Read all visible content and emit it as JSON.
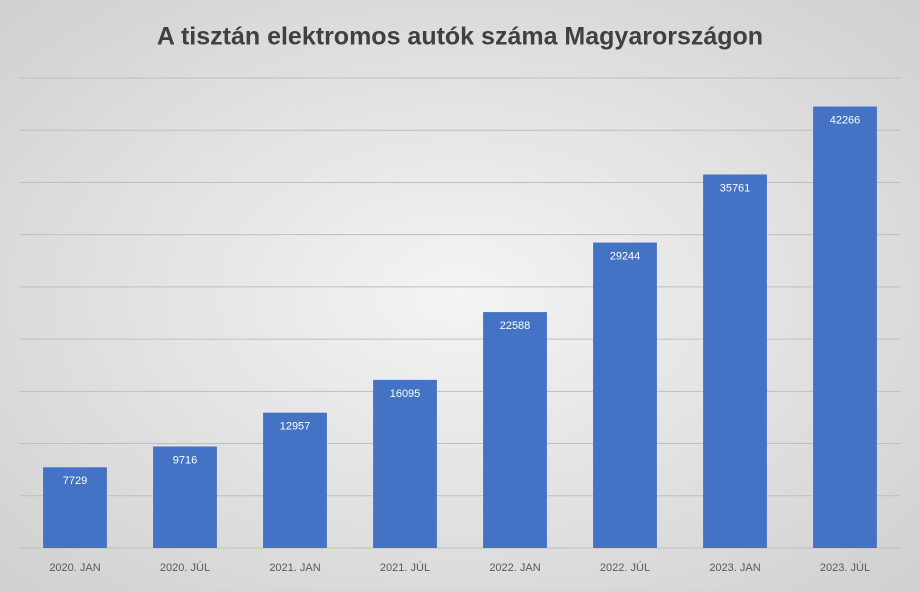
{
  "chart_data": {
    "type": "bar",
    "title": "A tisztán elektromos autók száma Magyarországon",
    "categories": [
      "2020. JAN",
      "2020. JÚL",
      "2021. JAN",
      "2021. JÚL",
      "2022. JAN",
      "2022. JÚL",
      "2023. JAN",
      "2023. JÚL"
    ],
    "values": [
      7729,
      9716,
      12957,
      16095,
      22588,
      29244,
      35761,
      42266
    ],
    "color": "#4472c4",
    "ylim": [
      0,
      45000
    ],
    "yticks": [
      0,
      5000,
      10000,
      15000,
      20000,
      25000,
      30000,
      35000,
      40000,
      45000
    ],
    "grid": true
  }
}
